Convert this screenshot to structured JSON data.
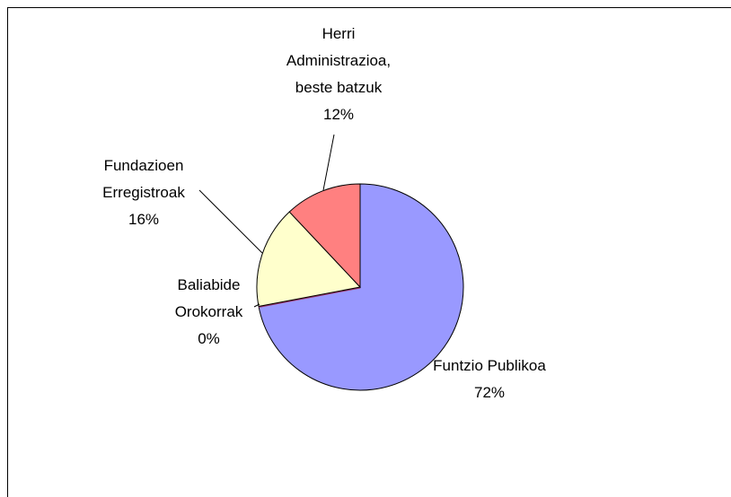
{
  "chart_data": {
    "type": "pie",
    "categories": [
      "Funtzio Publikoa",
      "Baliabide Orokorrak",
      "Fundazioen Erregistroak",
      "Herri Administrazioa, beste batzuk"
    ],
    "values": [
      72,
      0,
      16,
      12
    ],
    "value_labels": [
      "72%",
      "0%",
      "16%",
      "12%"
    ],
    "colors": [
      "#9999ff",
      "#993366",
      "#ffffcc",
      "#ff8080"
    ]
  }
}
